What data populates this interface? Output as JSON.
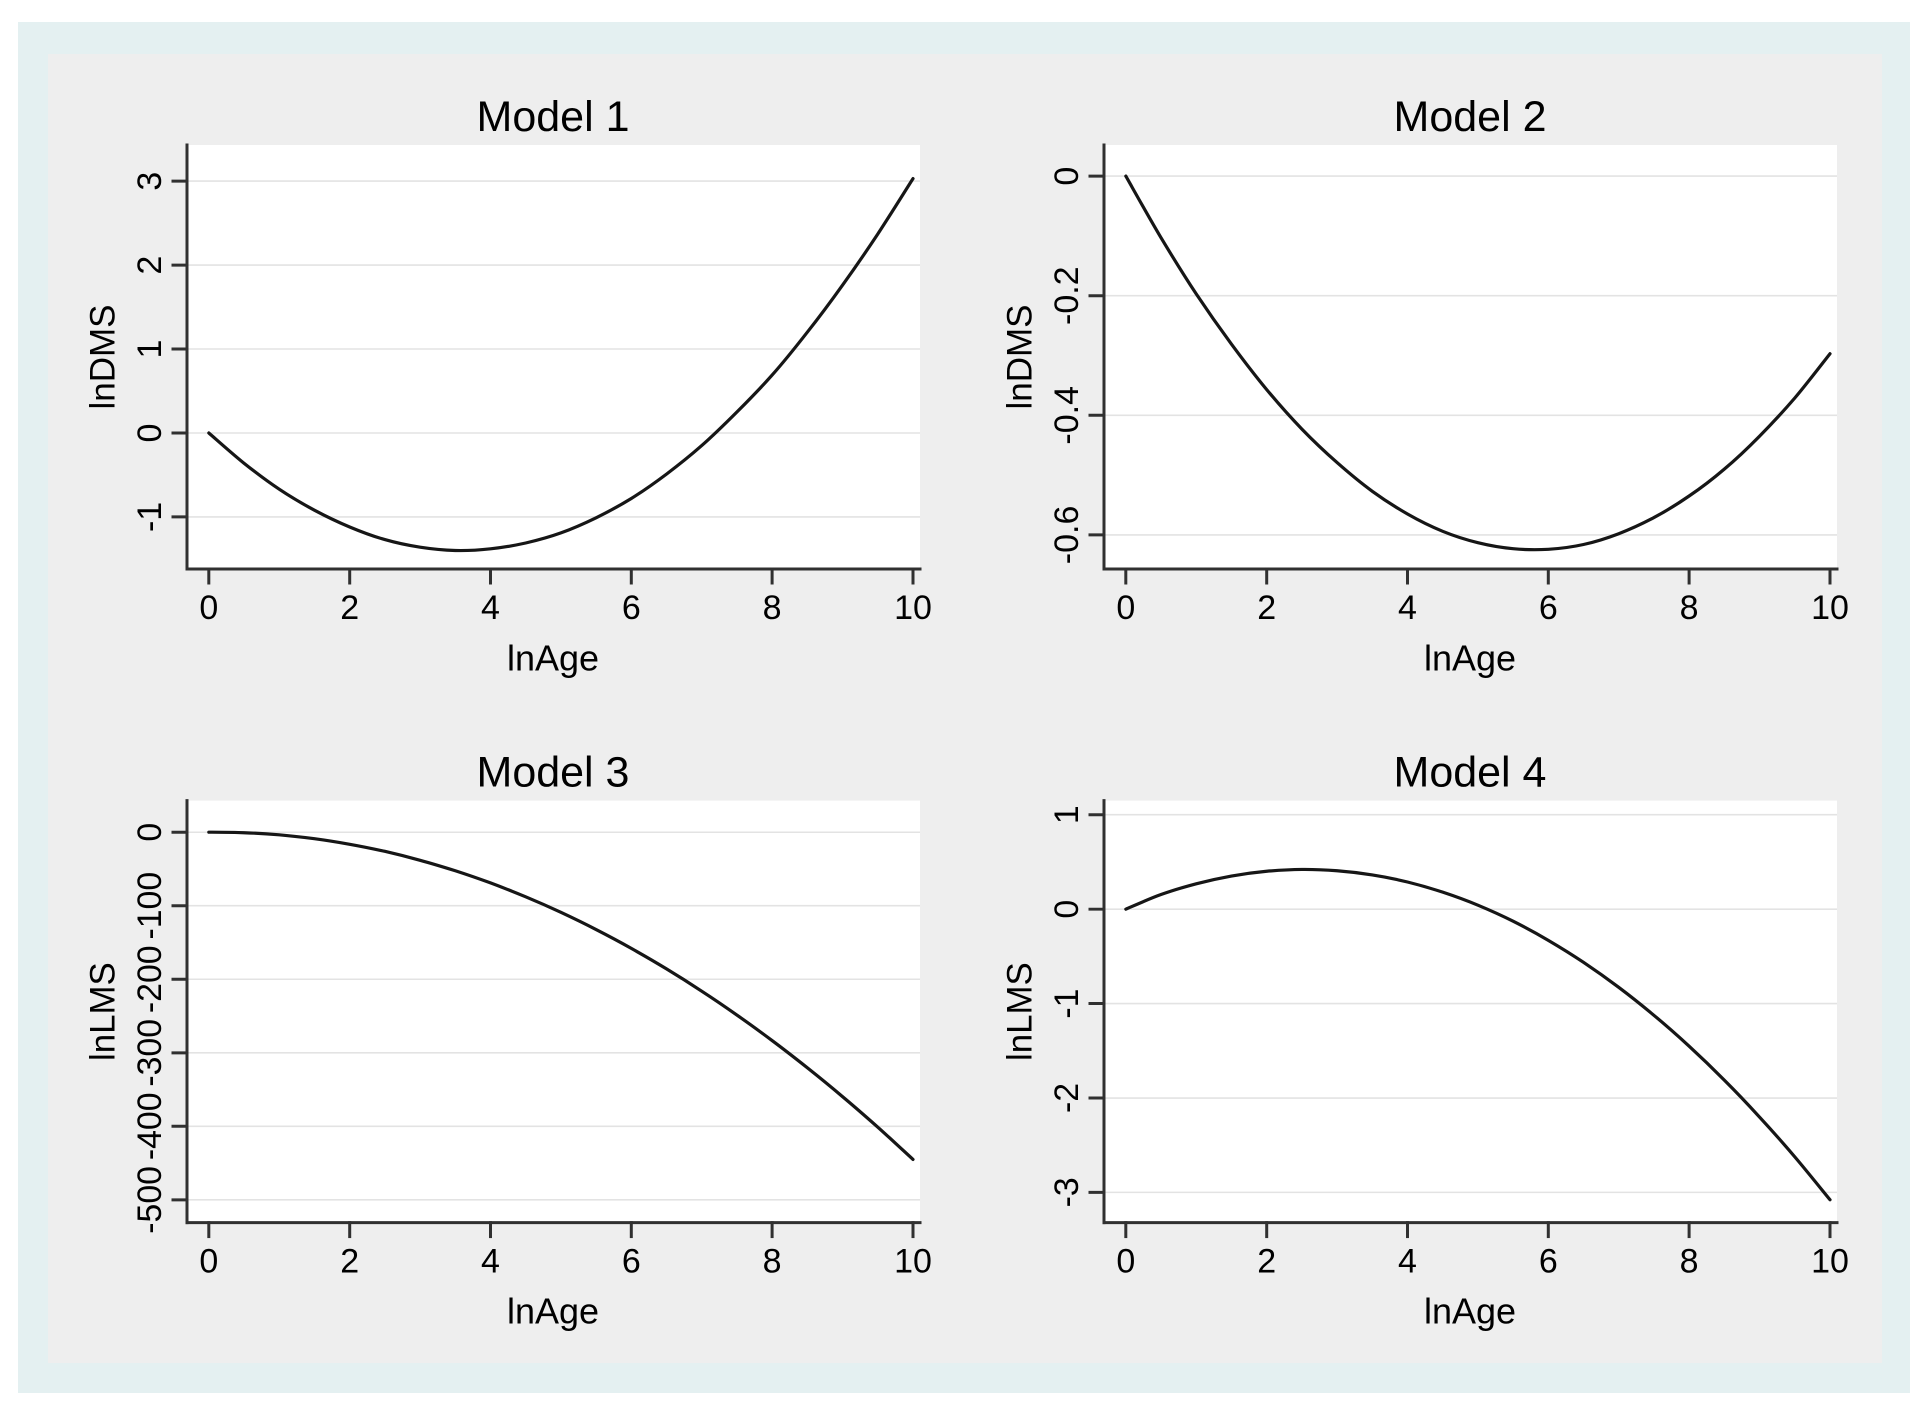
{
  "page": {
    "background": "#ffffff",
    "frame_color": "#e4f0f1",
    "canvas_color": "#eeeeee",
    "plot_background": "#ffffff",
    "grid_color": "#e3e3e3",
    "axis_color": "#303030",
    "line_color": "#161616",
    "text_color": "#000000"
  },
  "chart_data": [
    {
      "type": "line",
      "title": "Model 1",
      "xlabel": "lnAge",
      "ylabel": "lnDMS",
      "x": [
        0,
        0.5,
        1,
        1.5,
        2,
        2.5,
        3,
        3.5,
        4,
        4.5,
        5,
        5.5,
        6,
        6.5,
        7,
        7.5,
        8,
        8.5,
        9,
        9.5,
        10
      ],
      "y": [
        0,
        -0.36,
        -0.67,
        -0.92,
        -1.12,
        -1.27,
        -1.36,
        -1.4,
        -1.38,
        -1.31,
        -1.19,
        -1.01,
        -0.78,
        -0.49,
        -0.15,
        0.25,
        0.69,
        1.2,
        1.76,
        2.37,
        3.03
      ],
      "xticks": [
        0,
        2,
        4,
        6,
        8,
        10
      ],
      "yticks": [
        -1,
        0,
        1,
        2,
        3
      ],
      "ytick_labels": [
        "-1",
        "0",
        "1",
        "2",
        "3"
      ],
      "xlim": [
        -0.31,
        10.1
      ],
      "ylim": [
        -1.62,
        3.43
      ],
      "grid": "horizontal",
      "legend": "none"
    },
    {
      "type": "line",
      "title": "Model 2",
      "xlabel": "lnAge",
      "ylabel": "lnDMS",
      "x": [
        0,
        0.5,
        1,
        1.5,
        2,
        2.5,
        3,
        3.5,
        4,
        4.5,
        5,
        5.5,
        6,
        6.5,
        7,
        7.5,
        8,
        8.5,
        9,
        9.5,
        10
      ],
      "y": [
        0,
        -0.103,
        -0.197,
        -0.281,
        -0.357,
        -0.423,
        -0.479,
        -0.527,
        -0.565,
        -0.594,
        -0.613,
        -0.623,
        -0.624,
        -0.616,
        -0.598,
        -0.571,
        -0.535,
        -0.49,
        -0.435,
        -0.371,
        -0.297
      ],
      "xticks": [
        0,
        2,
        4,
        6,
        8,
        10
      ],
      "yticks": [
        -0.6,
        -0.4,
        -0.2,
        0
      ],
      "ytick_labels": [
        "-0.6",
        "-0.4",
        "-0.2",
        "0"
      ],
      "xlim": [
        -0.31,
        10.1
      ],
      "ylim": [
        -0.657,
        0.052
      ],
      "grid": "horizontal",
      "legend": "none"
    },
    {
      "type": "line",
      "title": "Model 3",
      "xlabel": "lnAge",
      "ylabel": "lnLMS",
      "x": [
        0,
        0.5,
        1,
        1.5,
        2,
        2.5,
        3,
        3.5,
        4,
        4.5,
        5,
        5.5,
        6,
        6.5,
        7,
        7.5,
        8,
        8.5,
        9,
        9.5,
        10
      ],
      "y": [
        0,
        -0.7,
        -3.6,
        -8.9,
        -16.4,
        -26.1,
        -38.2,
        -52.5,
        -69,
        -87.9,
        -109,
        -132.4,
        -158,
        -185.9,
        -216.2,
        -248.7,
        -283.4,
        -320.4,
        -359.6,
        -401.2,
        -445
      ],
      "xticks": [
        0,
        2,
        4,
        6,
        8,
        10
      ],
      "yticks": [
        -500,
        -400,
        -300,
        -200,
        -100,
        0
      ],
      "ytick_labels": [
        "-500",
        "-400",
        "-300",
        "-200",
        "-100",
        "0"
      ],
      "xlim": [
        -0.31,
        10.1
      ],
      "ylim": [
        -531,
        43
      ],
      "grid": "horizontal",
      "legend": "none"
    },
    {
      "type": "line",
      "title": "Model 4",
      "xlabel": "lnAge",
      "ylabel": "lnLMS",
      "x": [
        0,
        0.5,
        1,
        1.5,
        2,
        2.5,
        3,
        3.5,
        4,
        4.5,
        5,
        5.5,
        6,
        6.5,
        7,
        7.5,
        8,
        8.5,
        9,
        9.5,
        10
      ],
      "y": [
        0,
        0.155,
        0.269,
        0.351,
        0.401,
        0.42,
        0.407,
        0.363,
        0.288,
        0.18,
        0.042,
        -0.128,
        -0.33,
        -0.563,
        -0.828,
        -1.124,
        -1.451,
        -1.81,
        -2.201,
        -2.623,
        -3.077
      ],
      "xticks": [
        0,
        2,
        4,
        6,
        8,
        10
      ],
      "yticks": [
        -3,
        -2,
        -1,
        0,
        1
      ],
      "ytick_labels": [
        "-3",
        "-2",
        "-1",
        "0",
        "1"
      ],
      "xlim": [
        -0.31,
        10.1
      ],
      "ylim": [
        -3.32,
        1.15
      ],
      "grid": "horizontal",
      "legend": "none"
    }
  ]
}
